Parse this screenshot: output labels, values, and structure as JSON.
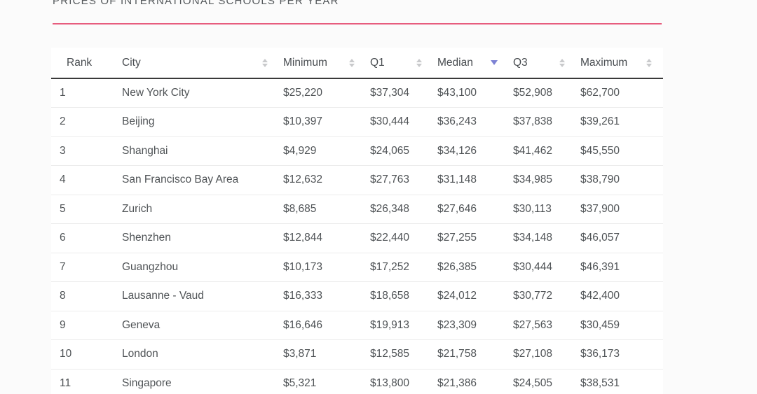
{
  "page": {
    "title": "PRICES OF INTERNATIONAL SCHOOLS PER YEAR"
  },
  "colors": {
    "title_divider": "#e75d7e",
    "active_sort_arrow": "#7d82d4",
    "inactive_sort_arrow": "#c9cacc"
  },
  "table": {
    "columns": [
      {
        "key": "rank",
        "label": "Rank",
        "sortable": false,
        "sorted": null
      },
      {
        "key": "city",
        "label": "City",
        "sortable": true,
        "sorted": null
      },
      {
        "key": "minimum",
        "label": "Minimum",
        "sortable": true,
        "sorted": null
      },
      {
        "key": "q1",
        "label": "Q1",
        "sortable": true,
        "sorted": null
      },
      {
        "key": "median",
        "label": "Median",
        "sortable": true,
        "sorted": "desc"
      },
      {
        "key": "q3",
        "label": "Q3",
        "sortable": true,
        "sorted": null
      },
      {
        "key": "maximum",
        "label": "Maximum",
        "sortable": true,
        "sorted": null
      }
    ],
    "rows": [
      {
        "rank": "1",
        "city": "New York City",
        "minimum": "$25,220",
        "q1": "$37,304",
        "median": "$43,100",
        "q3": "$52,908",
        "maximum": "$62,700"
      },
      {
        "rank": "2",
        "city": "Beijing",
        "minimum": "$10,397",
        "q1": "$30,444",
        "median": "$36,243",
        "q3": "$37,838",
        "maximum": "$39,261"
      },
      {
        "rank": "3",
        "city": "Shanghai",
        "minimum": "$4,929",
        "q1": "$24,065",
        "median": "$34,126",
        "q3": "$41,462",
        "maximum": "$45,550"
      },
      {
        "rank": "4",
        "city": "San Francisco Bay Area",
        "minimum": "$12,632",
        "q1": "$27,763",
        "median": "$31,148",
        "q3": "$34,985",
        "maximum": "$38,790"
      },
      {
        "rank": "5",
        "city": "Zurich",
        "minimum": "$8,685",
        "q1": "$26,348",
        "median": "$27,646",
        "q3": "$30,113",
        "maximum": "$37,900"
      },
      {
        "rank": "6",
        "city": "Shenzhen",
        "minimum": "$12,844",
        "q1": "$22,440",
        "median": "$27,255",
        "q3": "$34,148",
        "maximum": "$46,057"
      },
      {
        "rank": "7",
        "city": "Guangzhou",
        "minimum": "$10,173",
        "q1": "$17,252",
        "median": "$26,385",
        "q3": "$30,444",
        "maximum": "$46,391"
      },
      {
        "rank": "8",
        "city": "Lausanne - Vaud",
        "minimum": "$16,333",
        "q1": "$18,658",
        "median": "$24,012",
        "q3": "$30,772",
        "maximum": "$42,400"
      },
      {
        "rank": "9",
        "city": "Geneva",
        "minimum": "$16,646",
        "q1": "$19,913",
        "median": "$23,309",
        "q3": "$27,563",
        "maximum": "$30,459"
      },
      {
        "rank": "10",
        "city": "London",
        "minimum": "$3,871",
        "q1": "$12,585",
        "median": "$21,758",
        "q3": "$27,108",
        "maximum": "$36,173"
      },
      {
        "rank": "11",
        "city": "Singapore",
        "minimum": "$5,321",
        "q1": "$13,800",
        "median": "$21,386",
        "q3": "$24,505",
        "maximum": "$38,531"
      }
    ]
  }
}
